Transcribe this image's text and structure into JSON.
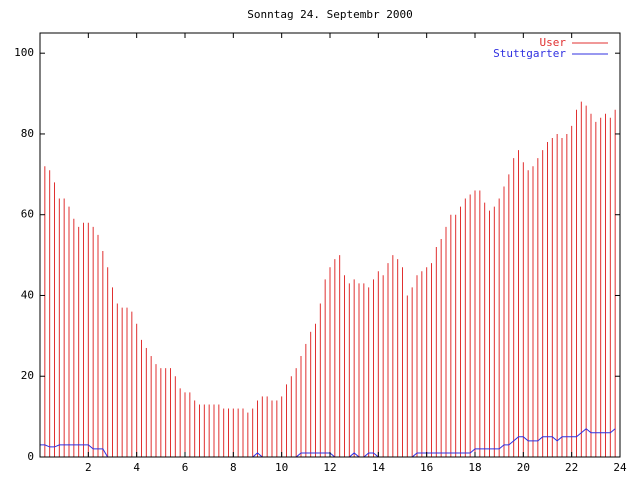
{
  "chart_data": {
    "type": "line",
    "title": "Sonntag 24. Septembr 2000",
    "x": [
      0,
      0.2,
      0.4,
      0.6,
      0.8,
      1,
      1.2,
      1.4,
      1.6,
      1.8,
      2,
      2.2,
      2.4,
      2.6,
      2.8,
      3,
      3.2,
      3.4,
      3.6,
      3.8,
      4,
      4.2,
      4.4,
      4.6,
      4.8,
      5,
      5.2,
      5.4,
      5.6,
      5.8,
      6,
      6.2,
      6.4,
      6.6,
      6.8,
      7,
      7.2,
      7.4,
      7.6,
      7.8,
      8,
      8.2,
      8.4,
      8.6,
      8.8,
      9,
      9.2,
      9.4,
      9.6,
      9.8,
      10,
      10.2,
      10.4,
      10.6,
      10.8,
      11,
      11.2,
      11.4,
      11.6,
      11.8,
      12,
      12.2,
      12.4,
      12.6,
      12.8,
      13,
      13.2,
      13.4,
      13.6,
      13.8,
      14,
      14.2,
      14.4,
      14.6,
      14.8,
      15,
      15.2,
      15.4,
      15.6,
      15.8,
      16,
      16.2,
      16.4,
      16.6,
      16.8,
      17,
      17.2,
      17.4,
      17.6,
      17.8,
      18,
      18.2,
      18.4,
      18.6,
      18.8,
      19,
      19.2,
      19.4,
      19.6,
      19.8,
      20,
      20.2,
      20.4,
      20.6,
      20.8,
      21,
      21.2,
      21.4,
      21.6,
      21.8,
      22,
      22.2,
      22.4,
      22.6,
      22.8,
      23,
      23.2,
      23.4,
      23.6,
      23.8
    ],
    "series": [
      {
        "name": "User",
        "color": "#e03030",
        "style": "impulses",
        "values": [
          77,
          72,
          71,
          68,
          64,
          64,
          62,
          59,
          57,
          58,
          58,
          57,
          55,
          51,
          47,
          42,
          38,
          37,
          37,
          36,
          33,
          29,
          27,
          25,
          23,
          22,
          22,
          22,
          20,
          17,
          16,
          16,
          14,
          13,
          13,
          13,
          13,
          13,
          12,
          12,
          12,
          12,
          12,
          11,
          12,
          14,
          15,
          15,
          14,
          14,
          15,
          18,
          20,
          22,
          25,
          28,
          31,
          33,
          38,
          44,
          47,
          49,
          50,
          45,
          43,
          44,
          43,
          43,
          42,
          44,
          46,
          45,
          48,
          50,
          49,
          47,
          40,
          42,
          45,
          46,
          47,
          48,
          52,
          54,
          57,
          60,
          60,
          62,
          64,
          65,
          66,
          66,
          63,
          61,
          62,
          64,
          67,
          70,
          74,
          76,
          73,
          71,
          72,
          74,
          76,
          78,
          79,
          80,
          79,
          80,
          82,
          86,
          88,
          87,
          85,
          83,
          84,
          85,
          84,
          86
        ]
      },
      {
        "name": "Stuttgarter",
        "color": "#3030e0",
        "style": "lines",
        "values": [
          3,
          3,
          2.5,
          2.5,
          3,
          3,
          3,
          3,
          3,
          3,
          3,
          2,
          2,
          2,
          0,
          0,
          0,
          0,
          0,
          0,
          0,
          0,
          0,
          0,
          0,
          0,
          0,
          0,
          0,
          0,
          0,
          0,
          0,
          0,
          0,
          0,
          0,
          0,
          0,
          0,
          0,
          0,
          0,
          0,
          0,
          1,
          0,
          0,
          0,
          0,
          0,
          0,
          0,
          0,
          1,
          1,
          1,
          1,
          1,
          1,
          1,
          0,
          0,
          0,
          0,
          1,
          0,
          0,
          1,
          1,
          0,
          0,
          0,
          0,
          0,
          0,
          0,
          0,
          1,
          1,
          1,
          1,
          1,
          1,
          1,
          1,
          1,
          1,
          1,
          1,
          2,
          2,
          2,
          2,
          2,
          2,
          3,
          3,
          4,
          5,
          5,
          4,
          4,
          4,
          5,
          5,
          5,
          4,
          5,
          5,
          5,
          5,
          6,
          7,
          6,
          6,
          6,
          6,
          6,
          7
        ]
      }
    ],
    "xlim": [
      0,
      24
    ],
    "ylim": [
      0,
      105
    ],
    "xticks": [
      2,
      4,
      6,
      8,
      10,
      12,
      14,
      16,
      18,
      20,
      22,
      24
    ],
    "yticks": [
      0,
      20,
      40,
      60,
      80,
      100
    ],
    "legend": "top-right"
  }
}
